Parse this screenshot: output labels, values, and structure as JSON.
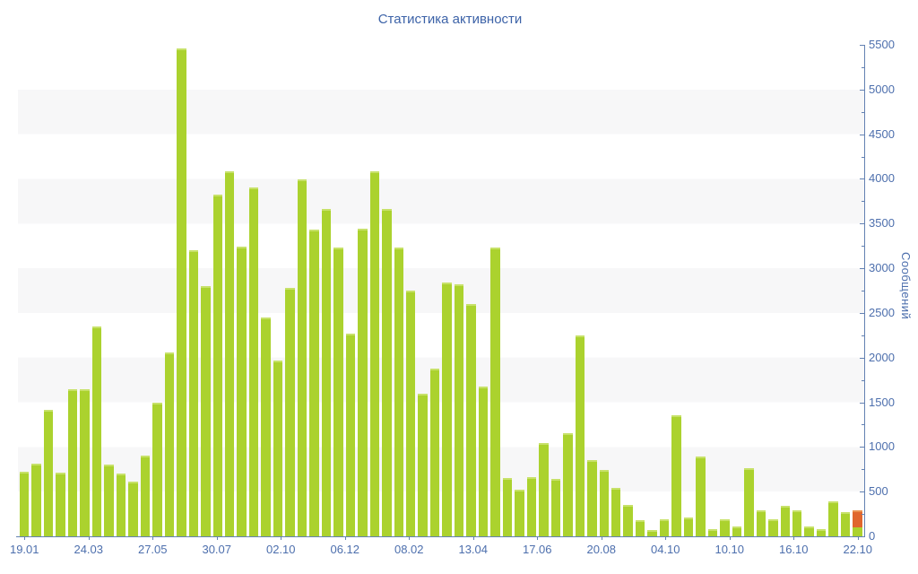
{
  "title": "Статистика активности",
  "chart_data": {
    "type": "bar",
    "title": "Статистика активности",
    "ylabel": "Сообщений",
    "xlabel": "",
    "legend": "none",
    "grid": "alternating horizontal gray bands every 500 units",
    "ylim": [
      0,
      5500
    ],
    "y_tick_step": 500,
    "y_tick_labels": [
      "0",
      "500",
      "1000",
      "1500",
      "2000",
      "2500",
      "3000",
      "3500",
      "4000",
      "4500",
      "5000",
      "5500"
    ],
    "categories": [
      "19.01",
      "24.03",
      "27.05",
      "30.07",
      "02.10",
      "06.12",
      "08.02",
      "13.04",
      "17.06",
      "20.08",
      "04.10",
      "10.10",
      "16.10",
      "22.10"
    ],
    "values": [
      720,
      815,
      1415,
      715,
      1645,
      1645,
      2350,
      805,
      700,
      615,
      905,
      1500,
      2060,
      5460,
      3200,
      2800,
      3820,
      4080,
      3240,
      3900,
      2450,
      1970,
      2780,
      3990,
      3430,
      3660,
      3230,
      2270,
      3440,
      4080,
      3660,
      3230,
      2750,
      1600,
      1880,
      2840,
      2820,
      2600,
      1680,
      3230,
      650,
      525,
      660,
      1040,
      640,
      1150,
      2250,
      855,
      740,
      540,
      355,
      180,
      75,
      190,
      1360,
      215,
      890,
      80,
      195,
      110,
      760,
      290,
      195,
      340,
      290,
      110,
      85,
      395,
      270,
      295
    ],
    "stacked_last_bar": {
      "green_bottom": 100,
      "orange_top": 195,
      "total": 295
    },
    "colors": {
      "bar_green": "#abd22e",
      "bar_green_cap": "#c7e169",
      "bar_orange": "#e0662e",
      "bar_orange_cap": "#ea9050",
      "title_text": "#3d63a8",
      "axis_text": "#4d6fad",
      "axis_line": "#6381b2",
      "band": "#f7f7f8",
      "background": "#ffffff"
    }
  }
}
